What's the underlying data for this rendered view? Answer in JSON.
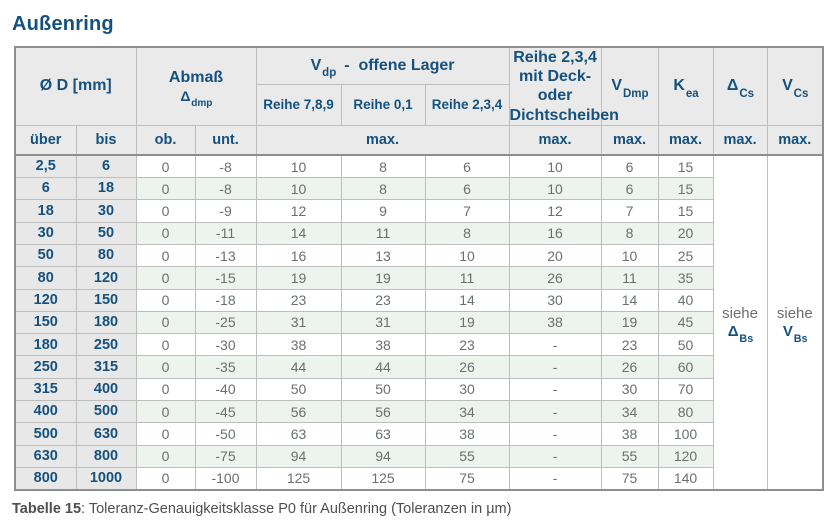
{
  "page": {
    "title": "Außenring",
    "caption": {
      "bold": "Tabelle 15",
      "rest": ": Toleranz-Genauigkeitsklasse P0 für Außenring (Toleranzen in µm)"
    }
  },
  "colors": {
    "accent_blue": "#15517e",
    "header_bg": "#e9eae9",
    "range_col_bg": "#e7e8e7",
    "stripe_green": "#edf4ed",
    "data_text": "#6c6e70",
    "border_outer": "#8d8f8e",
    "border_inner": "#bcbdbc"
  },
  "table": {
    "headers": {
      "diameter": "Ø D  [mm]",
      "abmass": {
        "line1": "Abmaß",
        "base": "Δ",
        "sub": "dmp"
      },
      "vdp_group": {
        "base": "V",
        "sub": "dp",
        "rest": "  -  offene Lager"
      },
      "vdp_cols": [
        "Reihe 7,8,9",
        "Reihe 0,1",
        "Reihe 2,3,4"
      ],
      "deck": {
        "line1": "Reihe 2,3,4",
        "line2": "mit Deck- oder",
        "line3": "Dichtscheiben"
      },
      "vdmp": {
        "base": "V",
        "sub": "Dmp"
      },
      "kea": {
        "base": "K",
        "sub": "ea"
      },
      "dcs": {
        "base": "Δ",
        "sub": "Cs"
      },
      "vcs": {
        "base": "V",
        "sub": "Cs"
      },
      "uber": "über",
      "bis": "bis",
      "ob": "ob.",
      "unt": "unt.",
      "max": "max."
    },
    "rows": [
      [
        "2,5",
        "6",
        "0",
        "-8",
        "10",
        "8",
        "6",
        "10",
        "6",
        "15"
      ],
      [
        "6",
        "18",
        "0",
        "-8",
        "10",
        "8",
        "6",
        "10",
        "6",
        "15"
      ],
      [
        "18",
        "30",
        "0",
        "-9",
        "12",
        "9",
        "7",
        "12",
        "7",
        "15"
      ],
      [
        "30",
        "50",
        "0",
        "-11",
        "14",
        "11",
        "8",
        "16",
        "8",
        "20"
      ],
      [
        "50",
        "80",
        "0",
        "-13",
        "16",
        "13",
        "10",
        "20",
        "10",
        "25"
      ],
      [
        "80",
        "120",
        "0",
        "-15",
        "19",
        "19",
        "11",
        "26",
        "11",
        "35"
      ],
      [
        "120",
        "150",
        "0",
        "-18",
        "23",
        "23",
        "14",
        "30",
        "14",
        "40"
      ],
      [
        "150",
        "180",
        "0",
        "-25",
        "31",
        "31",
        "19",
        "38",
        "19",
        "45"
      ],
      [
        "180",
        "250",
        "0",
        "-30",
        "38",
        "38",
        "23",
        "-",
        "23",
        "50"
      ],
      [
        "250",
        "315",
        "0",
        "-35",
        "44",
        "44",
        "26",
        "-",
        "26",
        "60"
      ],
      [
        "315",
        "400",
        "0",
        "-40",
        "50",
        "50",
        "30",
        "-",
        "30",
        "70"
      ],
      [
        "400",
        "500",
        "0",
        "-45",
        "56",
        "56",
        "34",
        "-",
        "34",
        "80"
      ],
      [
        "500",
        "630",
        "0",
        "-50",
        "63",
        "63",
        "38",
        "-",
        "38",
        "100"
      ],
      [
        "630",
        "800",
        "0",
        "-75",
        "94",
        "94",
        "55",
        "-",
        "55",
        "120"
      ],
      [
        "800",
        "1000",
        "0",
        "-100",
        "125",
        "125",
        "75",
        "-",
        "75",
        "140"
      ]
    ],
    "see_cells": [
      {
        "text": "siehe",
        "base": "Δ",
        "sub": "Bs"
      },
      {
        "text": "siehe",
        "base": "V",
        "sub": "Bs"
      }
    ]
  }
}
